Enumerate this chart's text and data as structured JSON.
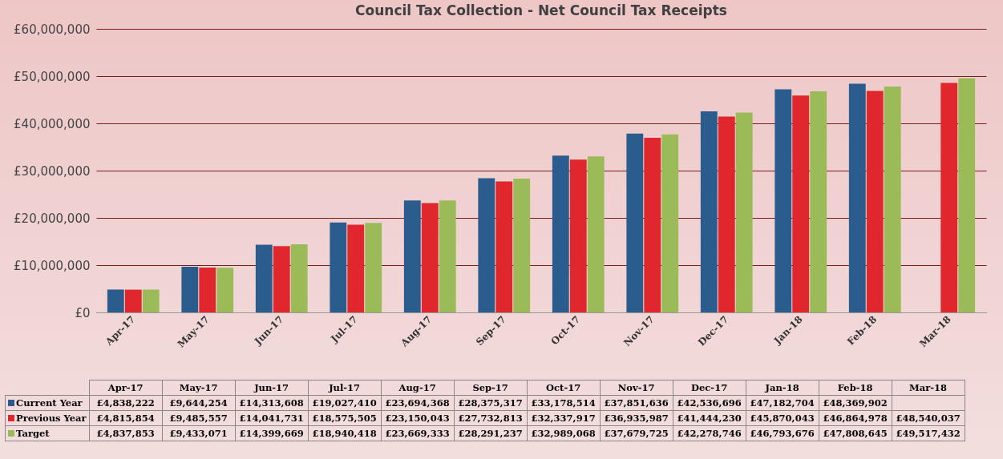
{
  "chart_data": {
    "type": "bar",
    "title": "Council Tax Collection - Net Council Tax Receipts",
    "categories": [
      "Apr-17",
      "May-17",
      "Jun-17",
      "Jul-17",
      "Aug-17",
      "Sep-17",
      "Oct-17",
      "Nov-17",
      "Dec-17",
      "Jan-18",
      "Feb-18",
      "Mar-18"
    ],
    "series": [
      {
        "name": "Current Year",
        "color": "#2b5c8e",
        "values": [
          4838222,
          9644254,
          14313608,
          19027410,
          23694368,
          28375317,
          33178514,
          37851636,
          42536696,
          47182704,
          48369902,
          null
        ],
        "value_labels": [
          "£4,838,222",
          "£9,644,254",
          "£14,313,608",
          "£19,027,410",
          "£23,694,368",
          "£28,375,317",
          "£33,178,514",
          "£37,851,636",
          "£42,536,696",
          "£47,182,704",
          "£48,369,902",
          null
        ]
      },
      {
        "name": "Previous Year",
        "color": "#e0272d",
        "values": [
          4815854,
          9485557,
          14041731,
          18575505,
          23150043,
          27732813,
          32337917,
          36935987,
          41444230,
          45870043,
          46864978,
          48540037
        ],
        "value_labels": [
          "£4,815,854",
          "£9,485,557",
          "£14,041,731",
          "£18,575,505",
          "£23,150,043",
          "£27,732,813",
          "£32,337,917",
          "£36,935,987",
          "£41,444,230",
          "£45,870,043",
          "£46,864,978",
          "£48,540,037"
        ]
      },
      {
        "name": "Target",
        "color": "#9bbb59",
        "values": [
          4837853,
          9433071,
          14399669,
          18940418,
          23669333,
          28291237,
          32989068,
          37679725,
          42278746,
          46793676,
          47808645,
          49517432
        ],
        "value_labels": [
          "£4,837,853",
          "£9,433,071",
          "£14,399,669",
          "£18,940,418",
          "£23,669,333",
          "£28,291,237",
          "£32,989,068",
          "£37,679,725",
          "£42,278,746",
          "£46,793,676",
          "£47,808,645",
          "£49,517,432"
        ]
      }
    ],
    "ylim": [
      0,
      60000000
    ],
    "yticks": [
      {
        "value": 0,
        "label": "£0"
      },
      {
        "value": 10000000,
        "label": "£10,000,000"
      },
      {
        "value": 20000000,
        "label": "£20,000,000"
      },
      {
        "value": 30000000,
        "label": "£30,000,000"
      },
      {
        "value": 40000000,
        "label": "£40,000,000"
      },
      {
        "value": 50000000,
        "label": "£50,000,000"
      },
      {
        "value": 60000000,
        "label": "£60,000,000"
      }
    ],
    "grid": "y",
    "legend": "bottom"
  }
}
